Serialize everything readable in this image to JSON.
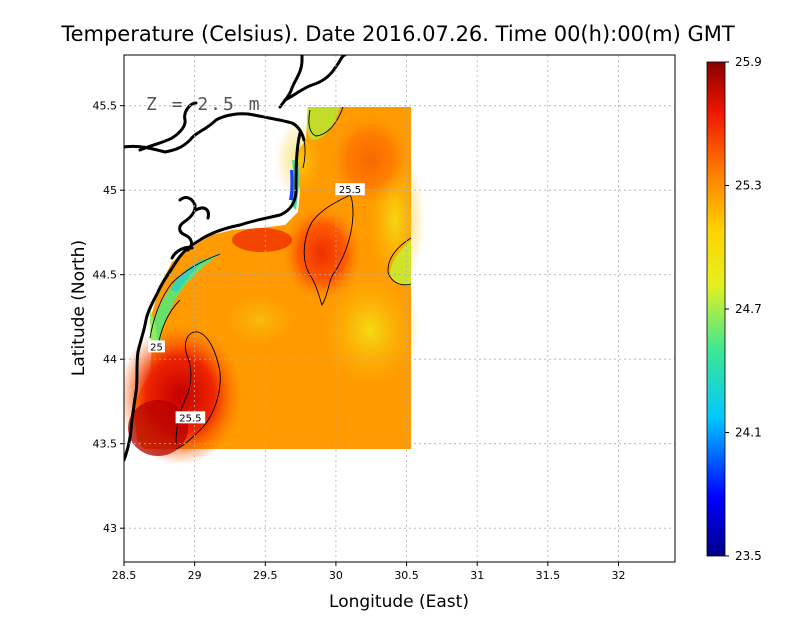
{
  "chart_data": {
    "type": "heatmap",
    "title": "Temperature (Celsius). Date 2016.07.26. Time 00(h):00(m) GMT",
    "xlabel": "Longitude (East)",
    "ylabel": "Latitude (North)",
    "xlim": [
      28.5,
      32.4
    ],
    "ylim": [
      42.8,
      45.8
    ],
    "xticks": [
      "28.5",
      "29",
      "29.5",
      "30",
      "30.5",
      "31",
      "31.5",
      "32"
    ],
    "yticks": [
      "43",
      "43.5",
      "44",
      "44.5",
      "45",
      "45.5"
    ],
    "grid": true,
    "depth_label": "Z = 2.5 m",
    "colorbar": {
      "min": 23.5,
      "max": 25.9,
      "ticks": [
        "25.9",
        "25.3",
        "24.7",
        "24.1",
        "23.5"
      ]
    },
    "contour_labels": [
      {
        "text": "25.5",
        "lon": 30.1,
        "lat": 45.0
      },
      {
        "text": "25",
        "lon": 28.73,
        "lat": 44.07
      },
      {
        "text": "25.5",
        "lon": 28.97,
        "lat": 43.65
      }
    ],
    "data_extent": {
      "lon": [
        28.63,
        30.55
      ],
      "lat": [
        43.48,
        45.5
      ]
    }
  }
}
